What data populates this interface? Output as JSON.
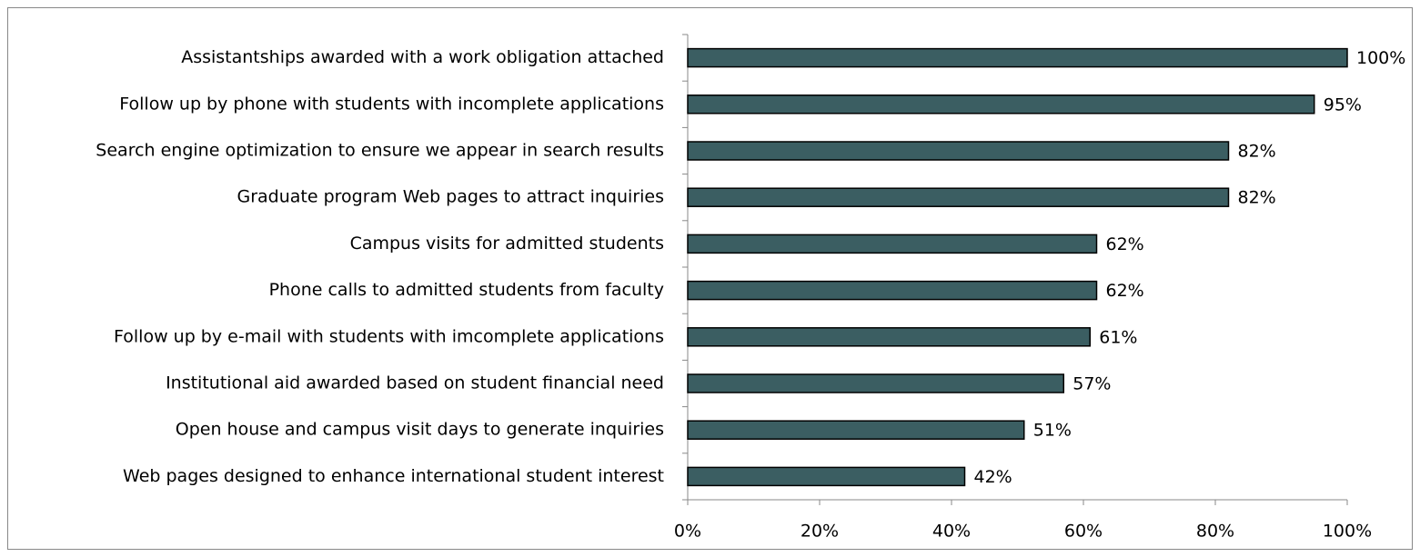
{
  "chart_data": {
    "type": "barh",
    "categories": [
      "Assistantships awarded with a work obligation attached",
      "Follow up by phone with students with incomplete applications",
      "Search engine optimization to ensure we appear in search results",
      "Graduate program Web pages to attract inquiries",
      "Campus visits for admitted students",
      "Phone calls to admitted students from faculty",
      "Follow up by e-mail with students with imcomplete applications",
      "Institutional aid awarded based on student financial need",
      "Open house and campus visit days to generate inquiries",
      "Web pages designed to enhance international student interest"
    ],
    "values": [
      100,
      95,
      82,
      82,
      62,
      62,
      61,
      57,
      51,
      42
    ],
    "value_labels": [
      "100%",
      "95%",
      "82%",
      "82%",
      "62%",
      "62%",
      "61%",
      "57%",
      "51%",
      "42%"
    ],
    "color": "#3b5e62",
    "xlim": [
      0,
      100
    ],
    "xticks": [
      {
        "value": 0,
        "label": "0%"
      },
      {
        "value": 20,
        "label": "20%"
      },
      {
        "value": 40,
        "label": "40%"
      },
      {
        "value": 60,
        "label": "60%"
      },
      {
        "value": 80,
        "label": "80%"
      },
      {
        "value": 100,
        "label": "100%"
      }
    ]
  }
}
